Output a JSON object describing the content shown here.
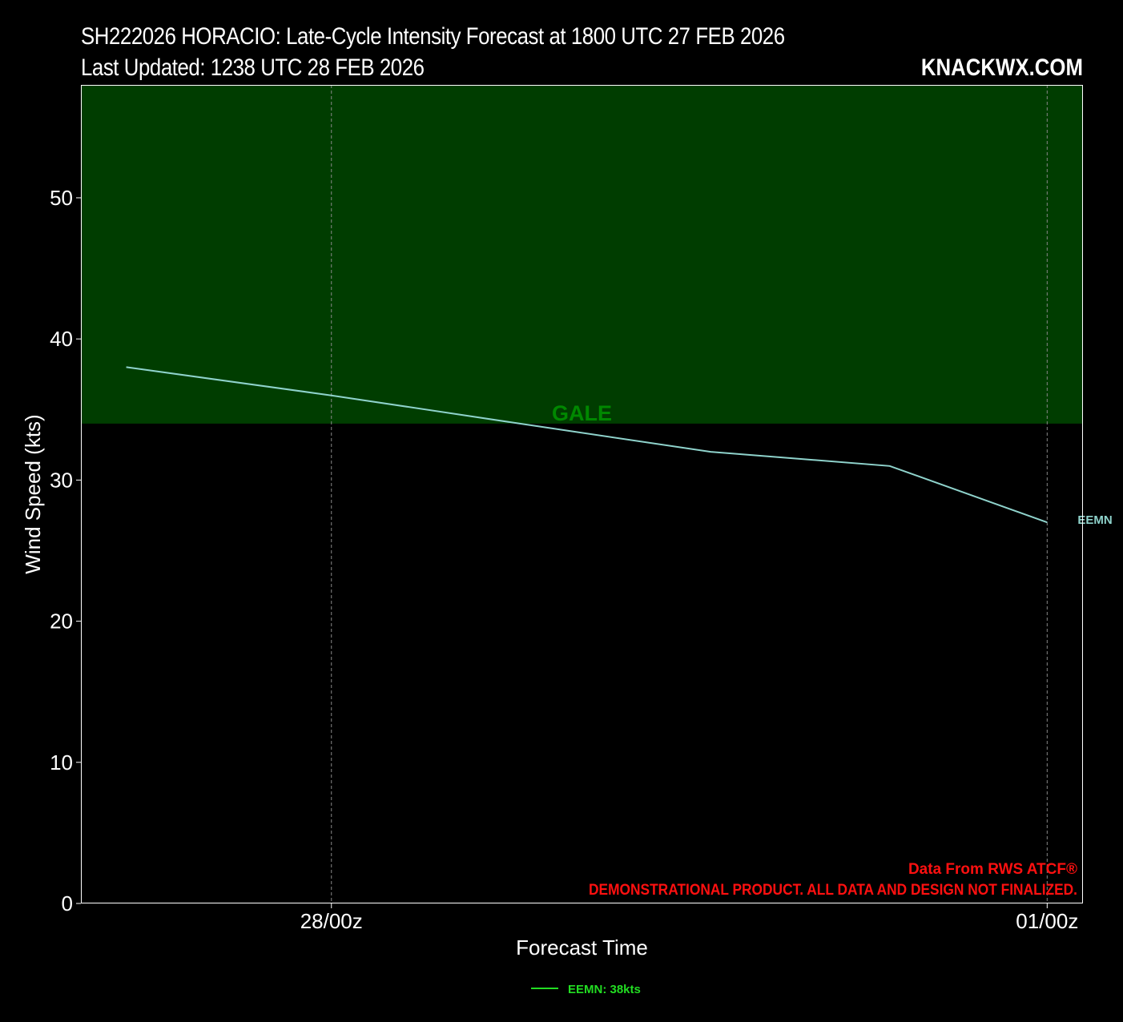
{
  "header": {
    "title_line1": "SH222026 HORACIO: Late-Cycle Intensity Forecast at 1800 UTC 27 FEB 2026",
    "title_line2": "Last Updated: 1238 UTC 28 FEB 2026",
    "brand": "KNACKWX.COM"
  },
  "chart_data": {
    "type": "line",
    "title": "SH222026 HORACIO: Late-Cycle Intensity Forecast at 1800 UTC 27 FEB 2026",
    "subtitle": "Last Updated: 1238 UTC 28 FEB 2026",
    "xlabel": "Forecast Time",
    "ylabel": "Wind Speed (kts)",
    "x_unit": "hours since 27 FEB 2026 18Z",
    "xlim": [
      -4.5,
      37.5
    ],
    "ylim": [
      0,
      58
    ],
    "yticks": [
      0,
      10,
      20,
      30,
      40,
      50
    ],
    "xticks": [
      {
        "value": 6,
        "label": "28/00z"
      },
      {
        "value": 36,
        "label": "01/00z"
      }
    ],
    "grid": "vertical dashed",
    "band": {
      "label": "GALE",
      "from": 34,
      "to": 58,
      "color": "#003d00",
      "label_color": "#008800"
    },
    "series": [
      {
        "name": "EEMN",
        "color": "#8fd3cc",
        "x": [
          -2.6,
          6,
          13.9,
          21.9,
          29.4,
          36
        ],
        "y": [
          38,
          36,
          34,
          32,
          31,
          27
        ]
      }
    ],
    "legend": {
      "placement": "bottom-center",
      "entries": [
        {
          "label": "EEMN: 38kts",
          "color": "#22dd22"
        }
      ]
    },
    "annotations": {
      "source": "Data From RWS ATCF®",
      "disclaimer": "DEMONSTRATIONAL PRODUCT. ALL DATA AND DESIGN NOT FINALIZED.",
      "color": "#ff1010"
    }
  }
}
